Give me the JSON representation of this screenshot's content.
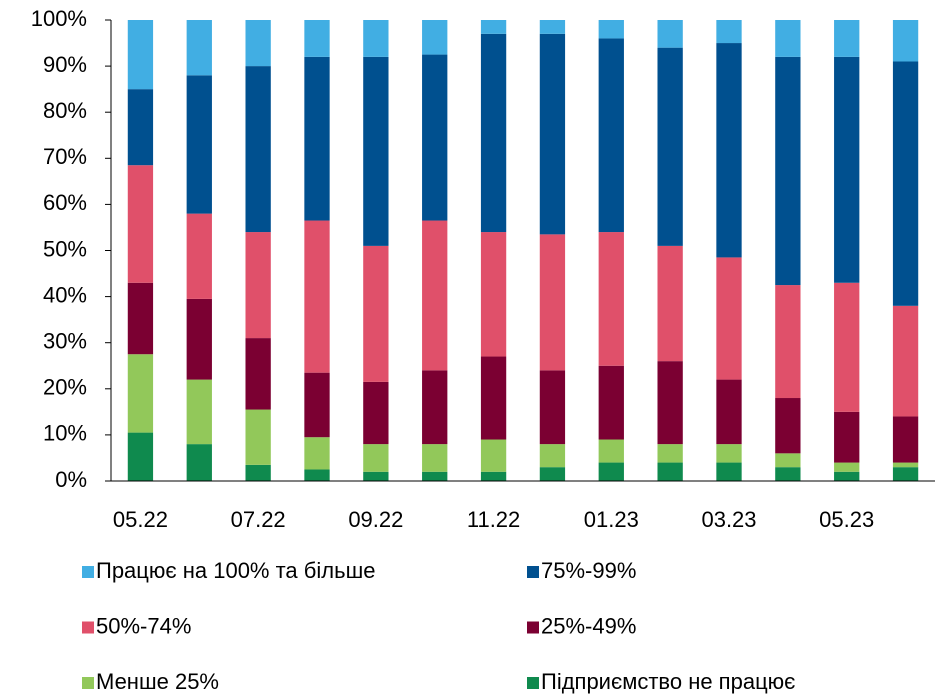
{
  "chart_data": {
    "type": "stacked_bar",
    "categories": [
      "05.22",
      null,
      "07.22",
      null,
      "09.22",
      null,
      "11.22",
      null,
      "01.23",
      null,
      "03.23",
      null,
      "05.23",
      null
    ],
    "series": [
      {
        "name": "Працює на 100% та більше",
        "color": "#41aee3",
        "values": [
          15,
          12,
          10,
          8,
          8,
          7.5,
          3,
          3,
          4,
          6,
          5,
          8,
          8,
          9
        ]
      },
      {
        "name": "75%-99%",
        "color": "#00508f",
        "values": [
          16.5,
          30,
          36,
          35.5,
          41,
          36,
          43,
          43.5,
          42,
          43,
          46.5,
          49.5,
          49,
          53
        ]
      },
      {
        "name": "50%-74%",
        "color": "#e0506a",
        "values": [
          25.5,
          18.5,
          23,
          33,
          29.5,
          32.5,
          27,
          29.5,
          29,
          25,
          26.5,
          24.5,
          28,
          24
        ]
      },
      {
        "name": "25%-49%",
        "color": "#7b0032",
        "values": [
          15.5,
          17.5,
          15.5,
          14,
          13.5,
          16,
          18,
          16,
          16,
          18,
          14,
          12,
          11,
          10
        ]
      },
      {
        "name": "Менше 25%",
        "color": "#92c85a",
        "values": [
          17,
          14,
          12,
          7,
          6,
          6,
          7,
          5,
          5,
          4,
          4,
          3,
          2,
          1
        ]
      },
      {
        "name": "Підприємство не працює",
        "color": "#0f8a4e",
        "values": [
          10.5,
          8,
          3.5,
          2.5,
          2,
          2,
          2,
          3,
          4,
          4,
          4,
          3,
          2,
          3
        ]
      }
    ],
    "ylim": [
      0,
      100
    ],
    "yticks": [
      {
        "value": 0,
        "label": "0%"
      },
      {
        "value": 10,
        "label": "10%"
      },
      {
        "value": 20,
        "label": "20%"
      },
      {
        "value": 30,
        "label": "30%"
      },
      {
        "value": 40,
        "label": "40%"
      },
      {
        "value": 50,
        "label": "50%"
      },
      {
        "value": 60,
        "label": "60%"
      },
      {
        "value": 70,
        "label": "70%"
      },
      {
        "value": 80,
        "label": "80%"
      },
      {
        "value": 90,
        "label": "90%"
      },
      {
        "value": 100,
        "label": "100%"
      }
    ]
  }
}
